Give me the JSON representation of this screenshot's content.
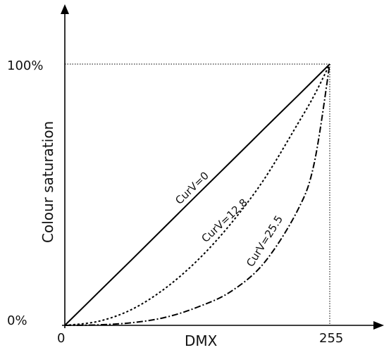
{
  "chart_data": {
    "type": "line",
    "title": "",
    "xlabel": "DMX",
    "ylabel": "Colour saturation",
    "xlim": [
      0,
      255
    ],
    "ylim": [
      0,
      100
    ],
    "x_tick_labels": [
      "0",
      "255"
    ],
    "y_tick_labels": [
      "0%",
      "100%"
    ],
    "grid": false,
    "series": [
      {
        "name": "CurV=0",
        "line_style": "solid",
        "x": [
          0,
          32,
          64,
          96,
          128,
          160,
          192,
          224,
          255
        ],
        "y": [
          0,
          12.5,
          25,
          37.6,
          50.2,
          62.7,
          75.3,
          87.8,
          100
        ]
      },
      {
        "name": "CurV=12.8",
        "line_style": "dotted",
        "x": [
          0,
          32,
          64,
          96,
          128,
          160,
          192,
          224,
          240,
          255
        ],
        "y": [
          0,
          1.5,
          6,
          14,
          25,
          39,
          56,
          77,
          88,
          100
        ]
      },
      {
        "name": "CurV=25.5",
        "line_style": "dash-dot",
        "x": [
          0,
          32,
          64,
          96,
          128,
          160,
          192,
          224,
          240,
          255
        ],
        "y": [
          0,
          0.2,
          1,
          3,
          7,
          13,
          24,
          44,
          62,
          100
        ]
      }
    ],
    "curve_labels": [
      "CurV=0",
      "CurV=12.8",
      "CurV=25.5"
    ],
    "colors": {
      "axis": "#000000",
      "lines": "#000000",
      "reference": "#000000"
    }
  }
}
